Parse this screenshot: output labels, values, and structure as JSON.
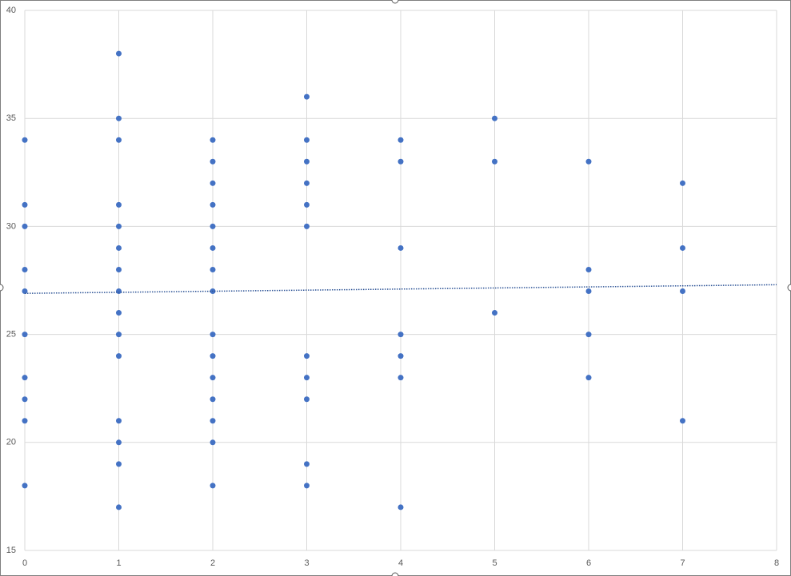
{
  "chart_data": {
    "type": "scatter",
    "x": [
      0,
      0,
      0,
      0,
      0,
      0,
      0,
      0,
      0,
      0,
      1,
      1,
      1,
      1,
      1,
      1,
      1,
      1,
      1,
      1,
      1,
      1,
      1,
      1,
      1,
      2,
      2,
      2,
      2,
      2,
      2,
      2,
      2,
      2,
      2,
      2,
      2,
      2,
      2,
      2,
      3,
      3,
      3,
      3,
      3,
      3,
      3,
      3,
      3,
      3,
      3,
      4,
      4,
      4,
      4,
      4,
      4,
      4,
      5,
      5,
      5,
      6,
      6,
      6,
      6,
      6,
      7,
      7,
      7,
      7
    ],
    "values": [
      34,
      31,
      30,
      28,
      27,
      25,
      23,
      22,
      21,
      18,
      38,
      35,
      34,
      31,
      30,
      29,
      28,
      27,
      26,
      25,
      24,
      21,
      20,
      19,
      17,
      34,
      33,
      32,
      31,
      30,
      29,
      28,
      27,
      25,
      24,
      23,
      22,
      21,
      20,
      18,
      36,
      34,
      33,
      32,
      31,
      30,
      24,
      23,
      22,
      19,
      18,
      34,
      33,
      29,
      25,
      24,
      23,
      17,
      35,
      33,
      26,
      33,
      28,
      27,
      25,
      23,
      32,
      29,
      27,
      21
    ],
    "color": "#4472c4",
    "trendline": {
      "x": [
        0,
        8
      ],
      "y": [
        26.9,
        27.3
      ],
      "color": "#2f5597",
      "style": "dotted"
    },
    "xlim": [
      0,
      8
    ],
    "xticks": [
      0,
      1,
      2,
      3,
      4,
      5,
      6,
      7,
      8
    ],
    "ylim": [
      15,
      40
    ],
    "yticks": [
      15,
      20,
      25,
      30,
      35,
      40
    ],
    "grid": true
  }
}
